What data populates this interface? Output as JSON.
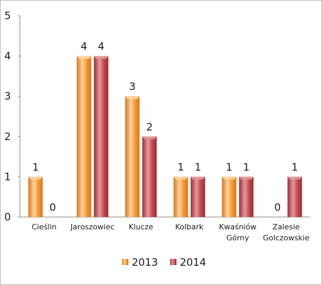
{
  "chart_data": {
    "type": "bar",
    "categories": [
      [
        "Cieślin"
      ],
      [
        "Jaroszowiec"
      ],
      [
        "Klucze"
      ],
      [
        "Kolbark"
      ],
      [
        "Kwaśniów",
        "Górny"
      ],
      [
        "Zalesie",
        "Golczowskie"
      ]
    ],
    "series": [
      {
        "name": "2013",
        "values": [
          1,
          4,
          3,
          1,
          1,
          0
        ],
        "color": "#f7962f",
        "color_light": "#fdd4a0",
        "color_dark": "#d8761a"
      },
      {
        "name": "2014",
        "values": [
          0,
          4,
          2,
          1,
          1,
          1
        ],
        "color": "#c0474c",
        "color_light": "#e49a9c",
        "color_dark": "#9a2e33"
      }
    ],
    "ylim": [
      0,
      5
    ],
    "yticks": [
      0,
      1,
      2,
      3,
      4,
      5
    ],
    "grid": false,
    "legend": "bottom",
    "data_labels": true
  }
}
